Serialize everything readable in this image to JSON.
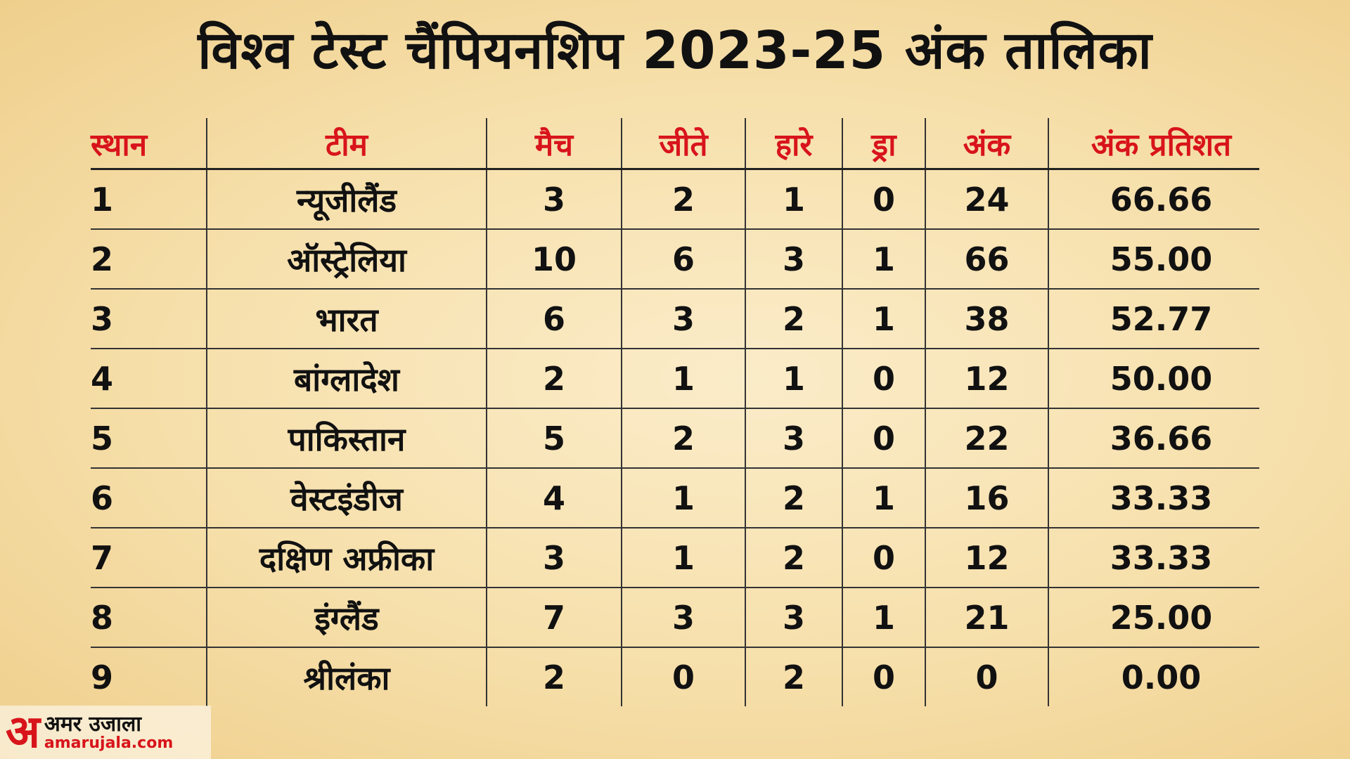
{
  "header": {
    "title": "विश्व टेस्ट चैंपियनशिप 2023-25 अंक तालिका"
  },
  "table": {
    "columns": [
      "स्थान",
      "टीम",
      "मैच",
      "जीते",
      "हारे",
      "ड्रा",
      "अंक",
      "अंक प्रतिशत"
    ],
    "rows": [
      [
        "1",
        "न्यूजीलैंड",
        "3",
        "2",
        "1",
        "0",
        "24",
        "66.66"
      ],
      [
        "2",
        "ऑस्ट्रेलिया",
        "10",
        "6",
        "3",
        "1",
        "66",
        "55.00"
      ],
      [
        "3",
        "भारत",
        "6",
        "3",
        "2",
        "1",
        "38",
        "52.77"
      ],
      [
        "4",
        "बांग्लादेश",
        "2",
        "1",
        "1",
        "0",
        "12",
        "50.00"
      ],
      [
        "5",
        "पाकिस्तान",
        "5",
        "2",
        "3",
        "0",
        "22",
        "36.66"
      ],
      [
        "6",
        "वेस्टइंडीज",
        "4",
        "1",
        "2",
        "1",
        "16",
        "33.33"
      ],
      [
        "7",
        "दक्षिण अफ्रीका",
        "3",
        "1",
        "2",
        "0",
        "12",
        "33.33"
      ],
      [
        "8",
        "इंग्लैंड",
        "7",
        "3",
        "3",
        "1",
        "21",
        "25.00"
      ],
      [
        "9",
        "श्रीलंका",
        "2",
        "0",
        "2",
        "0",
        "0",
        "0.00"
      ]
    ]
  },
  "logo": {
    "glyph": "अ",
    "name": "अमर उजाला",
    "url": "amarujala.com"
  }
}
